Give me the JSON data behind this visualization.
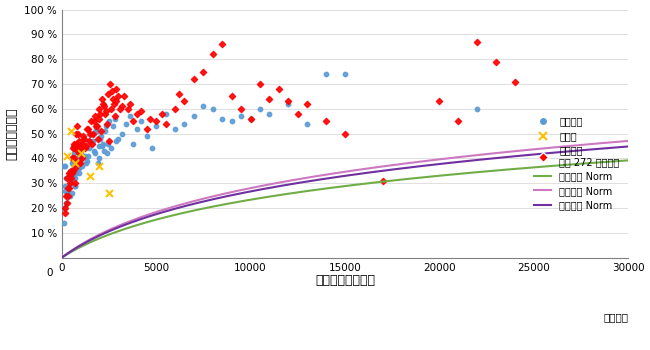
{
  "ylabel": "交通広告到達率",
  "xlabel": "交通広告出稿金額",
  "xlabel_unit": "（万円）",
  "xlim": [
    0,
    30000
  ],
  "ylim": [
    0,
    100
  ],
  "ytick_vals": [
    10,
    20,
    30,
    40,
    50,
    60,
    70,
    80,
    90,
    100
  ],
  "ytick_labels": [
    "10 %",
    "20 %",
    "30 %",
    "40 %",
    "50 %",
    "60 %",
    "70 %",
    "80 %",
    "90 %",
    "100 %"
  ],
  "xticks": [
    0,
    5000,
    10000,
    15000,
    20000,
    25000,
    30000
  ],
  "blue_scatter": [
    [
      120,
      37
    ],
    [
      150,
      27
    ],
    [
      180,
      29
    ],
    [
      200,
      37
    ],
    [
      220,
      32
    ],
    [
      250,
      22
    ],
    [
      270,
      26
    ],
    [
      300,
      28
    ],
    [
      320,
      25
    ],
    [
      350,
      27
    ],
    [
      370,
      33
    ],
    [
      400,
      32
    ],
    [
      420,
      35
    ],
    [
      450,
      25
    ],
    [
      470,
      31
    ],
    [
      500,
      30
    ],
    [
      520,
      26
    ],
    [
      540,
      35
    ],
    [
      560,
      38
    ],
    [
      580,
      39
    ],
    [
      600,
      38
    ],
    [
      620,
      33
    ],
    [
      640,
      37
    ],
    [
      660,
      42
    ],
    [
      680,
      29
    ],
    [
      700,
      29
    ],
    [
      720,
      32
    ],
    [
      740,
      34
    ],
    [
      760,
      38
    ],
    [
      780,
      38
    ],
    [
      800,
      40
    ],
    [
      820,
      43
    ],
    [
      840,
      45
    ],
    [
      860,
      45
    ],
    [
      880,
      36
    ],
    [
      900,
      39
    ],
    [
      920,
      34
    ],
    [
      940,
      36
    ],
    [
      960,
      40
    ],
    [
      980,
      40
    ],
    [
      1000,
      42
    ],
    [
      1050,
      37
    ],
    [
      1100,
      44
    ],
    [
      1150,
      46
    ],
    [
      1200,
      48
    ],
    [
      1250,
      41
    ],
    [
      1300,
      38
    ],
    [
      1350,
      39
    ],
    [
      1400,
      41
    ],
    [
      1450,
      44
    ],
    [
      1500,
      47
    ],
    [
      1550,
      50
    ],
    [
      1600,
      50
    ],
    [
      1650,
      47
    ],
    [
      1700,
      43
    ],
    [
      1750,
      42
    ],
    [
      1800,
      52
    ],
    [
      1850,
      51
    ],
    [
      1900,
      38
    ],
    [
      1950,
      40
    ],
    [
      2000,
      45
    ],
    [
      2050,
      48
    ],
    [
      2100,
      49
    ],
    [
      2150,
      45
    ],
    [
      2200,
      46
    ],
    [
      2250,
      43
    ],
    [
      2300,
      51
    ],
    [
      2350,
      53
    ],
    [
      2400,
      42
    ],
    [
      2450,
      46
    ],
    [
      2500,
      55
    ],
    [
      2600,
      44
    ],
    [
      2700,
      53
    ],
    [
      2800,
      56
    ],
    [
      2900,
      47
    ],
    [
      3000,
      48
    ],
    [
      3200,
      50
    ],
    [
      3400,
      54
    ],
    [
      3600,
      57
    ],
    [
      3800,
      46
    ],
    [
      4000,
      52
    ],
    [
      4200,
      55
    ],
    [
      4500,
      49
    ],
    [
      4800,
      44
    ],
    [
      5000,
      53
    ],
    [
      5500,
      58
    ],
    [
      6000,
      52
    ],
    [
      6500,
      54
    ],
    [
      7000,
      57
    ],
    [
      7500,
      61
    ],
    [
      8000,
      60
    ],
    [
      8500,
      56
    ],
    [
      9000,
      55
    ],
    [
      9500,
      57
    ],
    [
      10000,
      56
    ],
    [
      10500,
      60
    ],
    [
      11000,
      58
    ],
    [
      12000,
      62
    ],
    [
      13000,
      54
    ],
    [
      14000,
      74
    ],
    [
      15000,
      74
    ],
    [
      22000,
      60
    ],
    [
      100,
      20
    ],
    [
      110,
      14
    ]
  ],
  "yellow_scatter": [
    [
      300,
      41
    ],
    [
      500,
      51
    ],
    [
      700,
      38
    ],
    [
      1000,
      42
    ],
    [
      1500,
      33
    ],
    [
      2000,
      37
    ],
    [
      2500,
      26
    ]
  ],
  "red_scatter": [
    [
      150,
      18
    ],
    [
      200,
      20
    ],
    [
      250,
      25
    ],
    [
      280,
      22
    ],
    [
      300,
      32
    ],
    [
      320,
      28
    ],
    [
      350,
      25
    ],
    [
      370,
      34
    ],
    [
      400,
      28
    ],
    [
      420,
      30
    ],
    [
      450,
      34
    ],
    [
      470,
      35
    ],
    [
      500,
      32
    ],
    [
      520,
      40
    ],
    [
      550,
      34
    ],
    [
      580,
      44
    ],
    [
      600,
      35
    ],
    [
      620,
      40
    ],
    [
      640,
      45
    ],
    [
      650,
      40
    ],
    [
      660,
      46
    ],
    [
      680,
      44
    ],
    [
      700,
      30
    ],
    [
      720,
      36
    ],
    [
      740,
      45
    ],
    [
      760,
      50
    ],
    [
      780,
      46
    ],
    [
      800,
      38
    ],
    [
      820,
      53
    ],
    [
      840,
      43
    ],
    [
      850,
      43
    ],
    [
      860,
      50
    ],
    [
      880,
      46
    ],
    [
      900,
      42
    ],
    [
      920,
      47
    ],
    [
      940,
      38
    ],
    [
      950,
      38
    ],
    [
      1000,
      44
    ],
    [
      1050,
      46
    ],
    [
      1100,
      40
    ],
    [
      1150,
      49
    ],
    [
      1200,
      48
    ],
    [
      1250,
      44
    ],
    [
      1300,
      45
    ],
    [
      1350,
      52
    ],
    [
      1400,
      52
    ],
    [
      1450,
      47
    ],
    [
      1500,
      50
    ],
    [
      1550,
      55
    ],
    [
      1600,
      46
    ],
    [
      1650,
      50
    ],
    [
      1700,
      55
    ],
    [
      1750,
      57
    ],
    [
      1800,
      53
    ],
    [
      1850,
      53
    ],
    [
      1900,
      48
    ],
    [
      1950,
      60
    ],
    [
      2000,
      56
    ],
    [
      2050,
      58
    ],
    [
      2100,
      51
    ],
    [
      2150,
      64
    ],
    [
      2200,
      62
    ],
    [
      2250,
      61
    ],
    [
      2300,
      58
    ],
    [
      2350,
      59
    ],
    [
      2400,
      54
    ],
    [
      2450,
      66
    ],
    [
      2500,
      47
    ],
    [
      2550,
      70
    ],
    [
      2600,
      60
    ],
    [
      2650,
      67
    ],
    [
      2700,
      64
    ],
    [
      2750,
      62
    ],
    [
      2800,
      57
    ],
    [
      2850,
      68
    ],
    [
      2900,
      63
    ],
    [
      3000,
      65
    ],
    [
      3100,
      60
    ],
    [
      3200,
      61
    ],
    [
      3300,
      65
    ],
    [
      3500,
      60
    ],
    [
      3600,
      62
    ],
    [
      3800,
      55
    ],
    [
      4000,
      58
    ],
    [
      4200,
      59
    ],
    [
      4500,
      52
    ],
    [
      4700,
      56
    ],
    [
      5000,
      55
    ],
    [
      5300,
      58
    ],
    [
      5500,
      54
    ],
    [
      6000,
      60
    ],
    [
      6200,
      66
    ],
    [
      6500,
      63
    ],
    [
      7000,
      72
    ],
    [
      7500,
      75
    ],
    [
      8000,
      82
    ],
    [
      8500,
      86
    ],
    [
      9000,
      65
    ],
    [
      9500,
      60
    ],
    [
      10000,
      56
    ],
    [
      10500,
      70
    ],
    [
      11000,
      64
    ],
    [
      11500,
      68
    ],
    [
      12000,
      63
    ],
    [
      12500,
      58
    ],
    [
      13000,
      62
    ],
    [
      14000,
      55
    ],
    [
      15000,
      50
    ],
    [
      17000,
      31
    ],
    [
      20000,
      63
    ],
    [
      21000,
      55
    ],
    [
      22000,
      87
    ],
    [
      23000,
      79
    ],
    [
      24000,
      71
    ]
  ],
  "blue_color": "#5B9BD5",
  "yellow_color": "#FFC000",
  "red_color": "#FF0000",
  "green_line_color": "#70AD47",
  "pink_line_color": "#CC79C1",
  "purple_line_color": "#7030A0",
  "green_curve": {
    "a": 17.5,
    "b": 0.00028
  },
  "pink_curve": {
    "a": 21.0,
    "b": 0.00028
  },
  "purple_curve": {
    "a": 20.0,
    "b": 0.00028
  }
}
